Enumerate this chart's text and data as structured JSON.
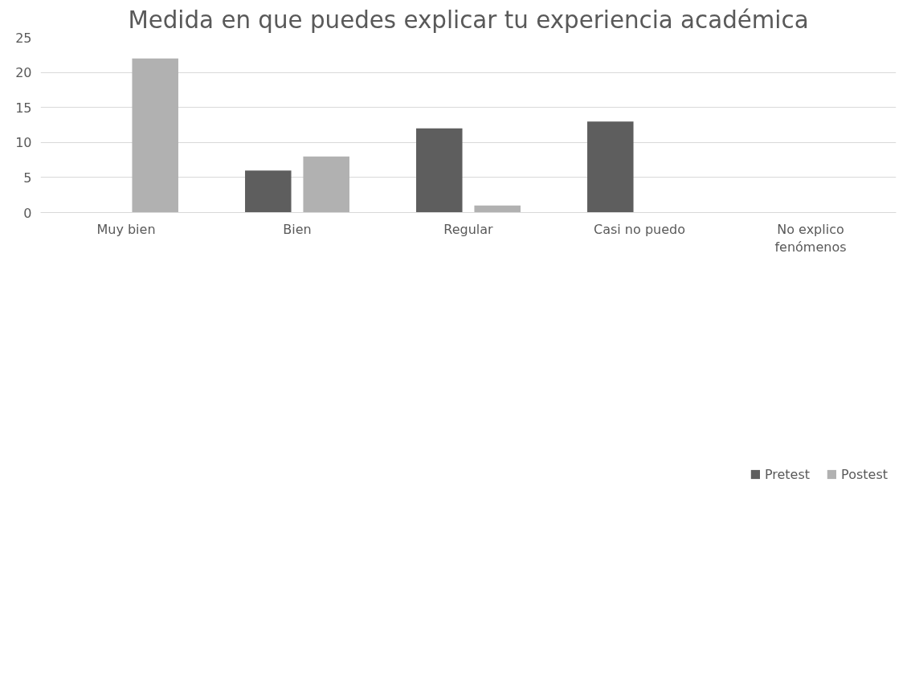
{
  "chart_data": {
    "type": "bar",
    "title": "Medida en que puedes explicar tu experiencia académica",
    "categories": [
      "Muy bien",
      "Bien",
      "Regular",
      "Casi no puedo",
      "No explico fenómenos"
    ],
    "series": [
      {
        "name": "Pretest",
        "color": "#5e5e5e",
        "values": [
          0,
          6,
          12,
          13,
          0
        ]
      },
      {
        "name": "Postest",
        "color": "#b1b1b1",
        "values": [
          22,
          8,
          1,
          0,
          0
        ]
      }
    ],
    "ylim": [
      0,
      25
    ],
    "yticks": [
      0,
      5,
      10,
      15,
      20,
      25
    ],
    "grid": "y",
    "legend": "bottom"
  }
}
